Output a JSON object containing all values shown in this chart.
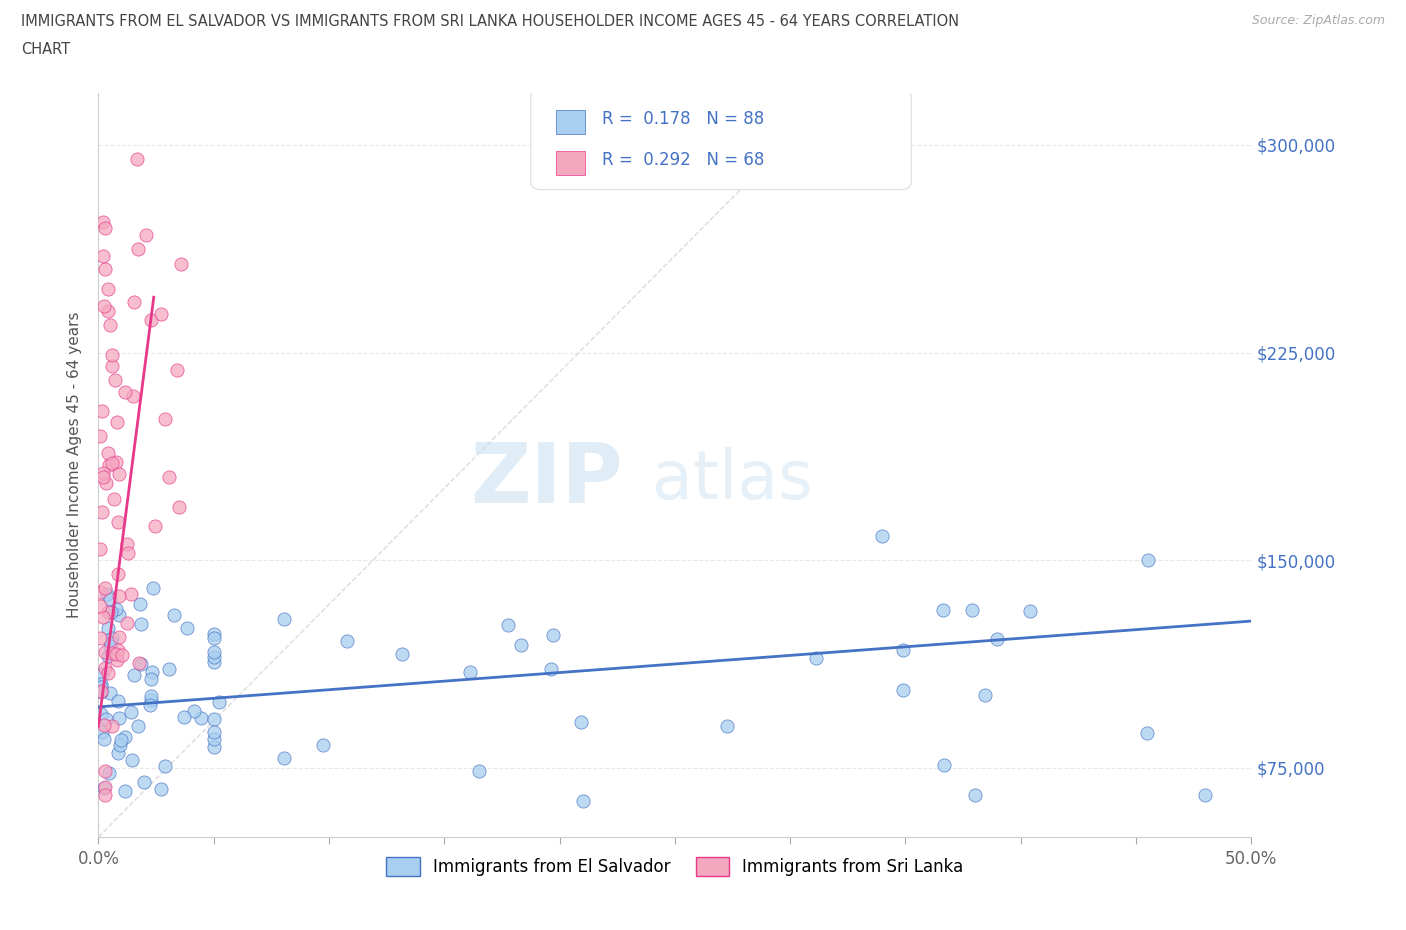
{
  "title_line1": "IMMIGRANTS FROM EL SALVADOR VS IMMIGRANTS FROM SRI LANKA HOUSEHOLDER INCOME AGES 45 - 64 YEARS CORRELATION",
  "title_line2": "CHART",
  "source_text": "Source: ZipAtlas.com",
  "ylabel": "Householder Income Ages 45 - 64 years",
  "xlim": [
    0.0,
    0.5
  ],
  "ylim": [
    50000,
    318750
  ],
  "y_ticks": [
    75000,
    150000,
    225000,
    300000
  ],
  "y_tick_labels": [
    "$75,000",
    "$150,000",
    "$225,000",
    "$300,000"
  ],
  "legend_r1_label": "R = 0.178   N = 88",
  "legend_r2_label": "R = 0.292   N = 68",
  "color_salvador": "#a8cef0",
  "color_srilanka": "#f4a8c0",
  "line_color_salvador": "#4472c4",
  "line_color_srilanka": "#e8388a",
  "diag_color": "#d8d8d8",
  "watermark_zip": "ZIP",
  "watermark_atlas": "atlas",
  "legend_label1": "Immigrants from El Salvador",
  "legend_label2": "Immigrants from Sri Lanka",
  "sal_line_x": [
    0.0,
    0.5
  ],
  "sal_line_y": [
    97000,
    128000
  ],
  "sri_line_x": [
    0.0,
    0.024
  ],
  "sri_line_y": [
    90000,
    245000
  ],
  "diag_line_x": [
    0.0,
    0.32
  ],
  "diag_line_y": [
    50000,
    318750
  ]
}
